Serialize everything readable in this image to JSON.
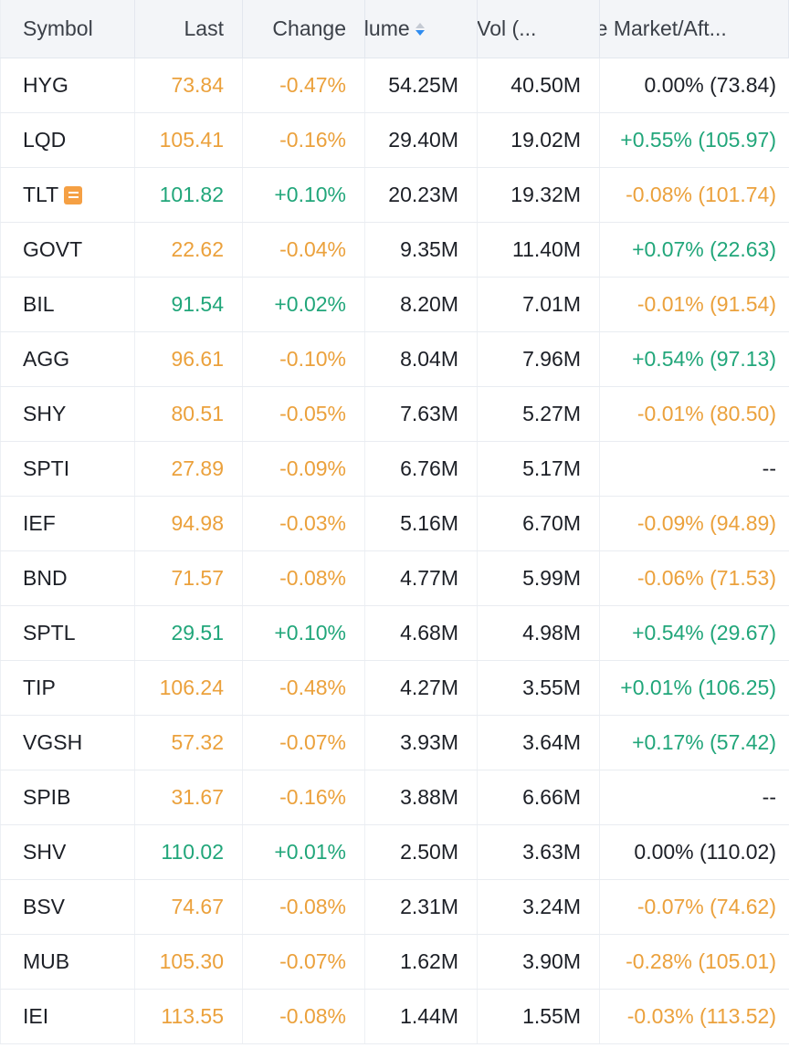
{
  "headers": {
    "symbol": "Symbol",
    "last": "Last",
    "change": "Change",
    "volume": "olume",
    "avg_vol": "g Vol (...",
    "pre_market": "re Market/Aft..."
  },
  "colors": {
    "up": "#21a67a",
    "down": "#eba13c",
    "neutral": "#1c1f26",
    "sort_active": "#2f8cf0"
  },
  "rows": [
    {
      "symbol": "HYG",
      "last": "73.84",
      "change": "-0.47%",
      "volume": "54.25M",
      "avg_vol": "40.50M",
      "pre": "0.00% (73.84)",
      "price_dir": "down",
      "pre_dir": "neutral"
    },
    {
      "symbol": "LQD",
      "last": "105.41",
      "change": "-0.16%",
      "volume": "29.40M",
      "avg_vol": "19.02M",
      "pre": "+0.55% (105.97)",
      "price_dir": "down",
      "pre_dir": "up"
    },
    {
      "symbol": "TLT",
      "last": "101.82",
      "change": "+0.10%",
      "volume": "20.23M",
      "avg_vol": "19.32M",
      "pre": "-0.08% (101.74)",
      "price_dir": "up",
      "pre_dir": "down",
      "news": true
    },
    {
      "symbol": "GOVT",
      "last": "22.62",
      "change": "-0.04%",
      "volume": "9.35M",
      "avg_vol": "11.40M",
      "pre": "+0.07% (22.63)",
      "price_dir": "down",
      "pre_dir": "up"
    },
    {
      "symbol": "BIL",
      "last": "91.54",
      "change": "+0.02%",
      "volume": "8.20M",
      "avg_vol": "7.01M",
      "pre": "-0.01% (91.54)",
      "price_dir": "up",
      "pre_dir": "down"
    },
    {
      "symbol": "AGG",
      "last": "96.61",
      "change": "-0.10%",
      "volume": "8.04M",
      "avg_vol": "7.96M",
      "pre": "+0.54% (97.13)",
      "price_dir": "down",
      "pre_dir": "up"
    },
    {
      "symbol": "SHY",
      "last": "80.51",
      "change": "-0.05%",
      "volume": "7.63M",
      "avg_vol": "5.27M",
      "pre": "-0.01% (80.50)",
      "price_dir": "down",
      "pre_dir": "down"
    },
    {
      "symbol": "SPTI",
      "last": "27.89",
      "change": "-0.09%",
      "volume": "6.76M",
      "avg_vol": "5.17M",
      "pre": "--",
      "price_dir": "down",
      "pre_dir": "neutral"
    },
    {
      "symbol": "IEF",
      "last": "94.98",
      "change": "-0.03%",
      "volume": "5.16M",
      "avg_vol": "6.70M",
      "pre": "-0.09% (94.89)",
      "price_dir": "down",
      "pre_dir": "down"
    },
    {
      "symbol": "BND",
      "last": "71.57",
      "change": "-0.08%",
      "volume": "4.77M",
      "avg_vol": "5.99M",
      "pre": "-0.06% (71.53)",
      "price_dir": "down",
      "pre_dir": "down"
    },
    {
      "symbol": "SPTL",
      "last": "29.51",
      "change": "+0.10%",
      "volume": "4.68M",
      "avg_vol": "4.98M",
      "pre": "+0.54% (29.67)",
      "price_dir": "up",
      "pre_dir": "up"
    },
    {
      "symbol": "TIP",
      "last": "106.24",
      "change": "-0.48%",
      "volume": "4.27M",
      "avg_vol": "3.55M",
      "pre": "+0.01% (106.25)",
      "price_dir": "down",
      "pre_dir": "up"
    },
    {
      "symbol": "VGSH",
      "last": "57.32",
      "change": "-0.07%",
      "volume": "3.93M",
      "avg_vol": "3.64M",
      "pre": "+0.17% (57.42)",
      "price_dir": "down",
      "pre_dir": "up"
    },
    {
      "symbol": "SPIB",
      "last": "31.67",
      "change": "-0.16%",
      "volume": "3.88M",
      "avg_vol": "6.66M",
      "pre": "--",
      "price_dir": "down",
      "pre_dir": "neutral"
    },
    {
      "symbol": "SHV",
      "last": "110.02",
      "change": "+0.01%",
      "volume": "2.50M",
      "avg_vol": "3.63M",
      "pre": "0.00% (110.02)",
      "price_dir": "up",
      "pre_dir": "neutral"
    },
    {
      "symbol": "BSV",
      "last": "74.67",
      "change": "-0.08%",
      "volume": "2.31M",
      "avg_vol": "3.24M",
      "pre": "-0.07% (74.62)",
      "price_dir": "down",
      "pre_dir": "down"
    },
    {
      "symbol": "MUB",
      "last": "105.30",
      "change": "-0.07%",
      "volume": "1.62M",
      "avg_vol": "3.90M",
      "pre": "-0.28% (105.01)",
      "price_dir": "down",
      "pre_dir": "down"
    },
    {
      "symbol": "IEI",
      "last": "113.55",
      "change": "-0.08%",
      "volume": "1.44M",
      "avg_vol": "1.55M",
      "pre": "-0.03% (113.52)",
      "price_dir": "down",
      "pre_dir": "down"
    }
  ]
}
